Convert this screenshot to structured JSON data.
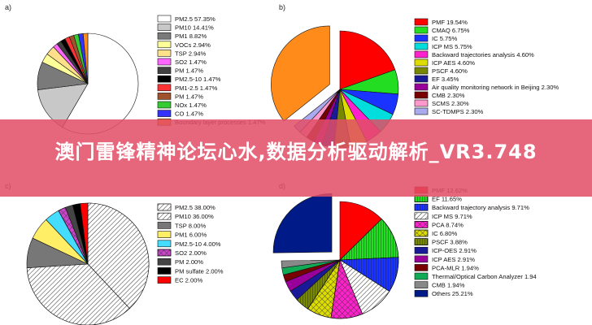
{
  "banner": {
    "title": "澳门雷锋精神论坛心水,数据分析驱动解析_VR3.748"
  },
  "chart_data": [
    {
      "type": "pie",
      "panel": "a)",
      "title": "",
      "categories": [
        "PM2.5 57.35%",
        "PM10 14.41%",
        "PM1 8.82%",
        "VOCs 2.94%",
        "TSP 2.94%",
        "SO2 1.47%",
        "PM 1.47%",
        "PM2.5-10 1.47%",
        "PM1-2.5 1.47%",
        "PM 1.47%",
        "NOx 1.47%",
        "CO 1.47%",
        "Boundary layer processes 1.47%"
      ],
      "values": [
        57.35,
        14.41,
        8.82,
        2.94,
        2.94,
        1.47,
        1.47,
        1.47,
        1.47,
        1.47,
        1.47,
        1.47,
        1.47
      ],
      "colors": [
        "#ffffff",
        "#c8c8c8",
        "#7a7a7a",
        "#ffff99",
        "#ffe08a",
        "#ff66ff",
        "#404040",
        "#000000",
        "#ff3333",
        "#a0522d",
        "#33cc33",
        "#3333ff",
        "#ff8c1a"
      ]
    },
    {
      "type": "pie",
      "panel": "b)",
      "title": "",
      "categories": [
        "PMF 19.54%",
        "CMAQ 6.75%",
        "IC 5.75%",
        "ICP MS 5.75%",
        "Backward trajectories analysis 4.60%",
        "ICP AES 4.60%",
        "PSCF 4.60%",
        "EF 3.45%",
        "Air quality monitoring network in Beijing 2.30%",
        "CMB 2.30%",
        "SCMS 2.30%",
        "SC-TDMPS 2.30%"
      ],
      "values": [
        19.54,
        6.75,
        5.75,
        5.75,
        4.6,
        4.6,
        4.6,
        3.45,
        2.3,
        2.3,
        2.3,
        2.3
      ],
      "others": 35.76,
      "colors": [
        "#ff0000",
        "#22dd22",
        "#1a33ff",
        "#00dddd",
        "#ff22cc",
        "#dddd00",
        "#778800",
        "#1a1a99",
        "#990099",
        "#770000",
        "#ff99cc",
        "#aaaaee"
      ],
      "others_color": "#ff8c1a"
    },
    {
      "type": "pie",
      "panel": "c)",
      "title": "",
      "categories": [
        "PM2.5 38.00%",
        "PM10 36.00%",
        "TSP 8.00%",
        "PM1 6.00%",
        "PM2.5-10 4.00%",
        "SO2 2.00%",
        "PM 2.00%",
        "PM sulfate 2.00%",
        "EC 2.00%"
      ],
      "values": [
        38.0,
        36.0,
        8.0,
        6.0,
        4.0,
        2.0,
        2.0,
        2.0,
        2.0
      ],
      "colors": [
        "#ffffff",
        "#b8b8b8",
        "#777777",
        "#ffee66",
        "#44ddff",
        "#cc44cc",
        "#444444",
        "#000000",
        "#ff0000"
      ]
    },
    {
      "type": "pie",
      "panel": "d)",
      "title": "",
      "categories": [
        "PMF 12.62%",
        "EF 11.65%",
        "Backward trajectory analysis 9.71%",
        "ICP MS 9.71%",
        "PCA 8.74%",
        "IC 6.80%",
        "PSCF 3.88%",
        "ICP-OES 2.91%",
        "ICP AES 2.91%",
        "PCA-MLR 1.94%",
        "Thermal/Optical Carbon Analyzer 1.94",
        "CMB 1.94%",
        "Others 25.21%"
      ],
      "values": [
        12.62,
        11.65,
        9.71,
        9.71,
        8.74,
        6.8,
        3.88,
        2.91,
        2.91,
        1.94,
        1.94,
        1.94,
        25.21
      ],
      "colors": [
        "#ff0000",
        "#22dd22",
        "#1a33ff",
        "#00dddd",
        "#ff22cc",
        "#dddd00",
        "#778800",
        "#1a1a99",
        "#990099",
        "#770000",
        "#11aa55",
        "#888888",
        "#001a88"
      ]
    }
  ]
}
